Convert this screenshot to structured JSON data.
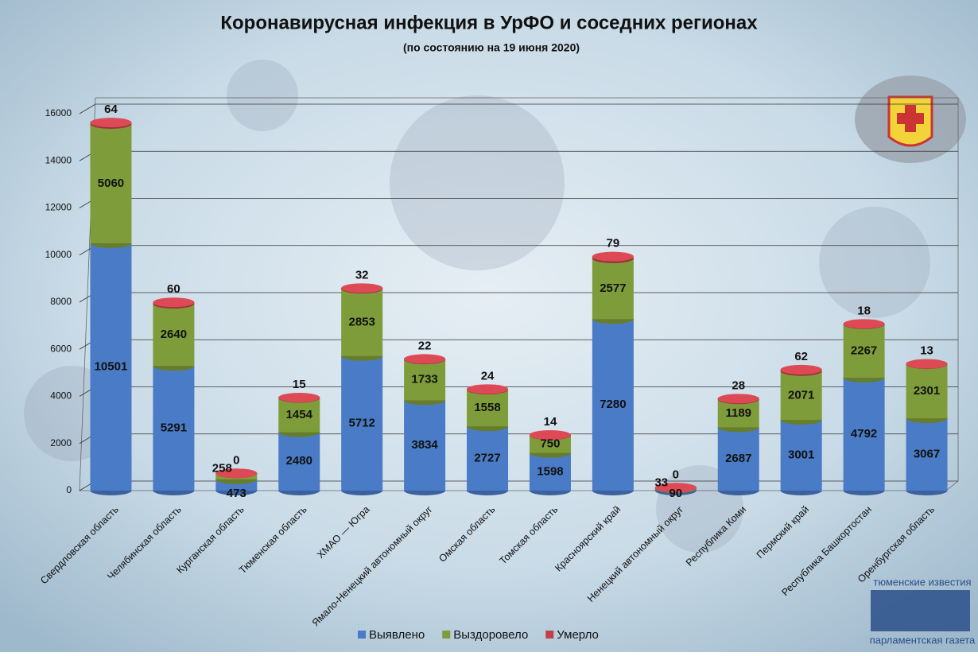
{
  "chart_data": {
    "type": "stacked-cylinder",
    "title": "Коронавирусная инфекция в УрФО и соседних регионах",
    "subtitle": "(по состоянию на 19 июня 2020)",
    "categories": [
      "Свердловская область",
      "Челябинская область",
      "Курганская область",
      "Тюменская область",
      "ХМАО — Югра",
      "Ямало-Ненецкий автономный округ",
      "Омская область",
      "Томская область",
      "Красноярский край",
      "Ненецкий автономный округ",
      "Республика Коми",
      "Пермский край",
      "Республика Башкортостан",
      "Оренбургская область"
    ],
    "series": [
      {
        "name": "Выявлено",
        "color": "#4a7bc6",
        "values": [
          10501,
          5291,
          473,
          2480,
          5712,
          3834,
          2727,
          1598,
          7280,
          90,
          2687,
          3001,
          4792,
          3067
        ]
      },
      {
        "name": "Выздоровело",
        "color": "#7f9c3a",
        "values": [
          5060,
          2640,
          258,
          1454,
          2853,
          1733,
          1558,
          750,
          2577,
          33,
          1189,
          2071,
          2267,
          2301
        ]
      },
      {
        "name": "Умерло",
        "color": "#c0404a",
        "values": [
          64,
          60,
          0,
          15,
          32,
          22,
          24,
          14,
          79,
          0,
          28,
          62,
          18,
          13
        ]
      }
    ],
    "ylim": [
      0,
      16000
    ],
    "yticks": [
      0,
      2000,
      4000,
      6000,
      8000,
      10000,
      12000,
      14000,
      16000
    ],
    "grid": true,
    "legend": "bottom",
    "annotations": [
      "тюменские известия",
      "парламентская газета"
    ]
  }
}
